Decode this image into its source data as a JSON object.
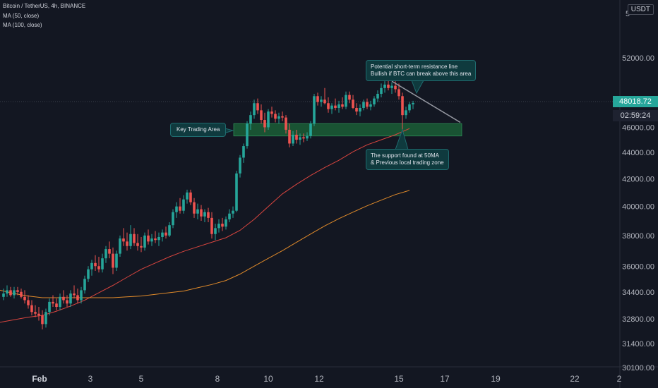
{
  "header": {
    "symbol": "Bitcoin / TetherUS, 4h, BINANCE",
    "ma50": "MA (50, close)",
    "ma100": "MA (100, close)"
  },
  "unit": "USDT",
  "price_axis_labels": [
    "52000.00",
    "46000.00",
    "44000.00",
    "42000.00",
    "40000.00",
    "38000.00",
    "36000.00",
    "34400.00",
    "32800.00",
    "31400.00",
    "30100.00"
  ],
  "time_axis_labels": [
    "Feb",
    "3",
    "5",
    "8",
    "10",
    "12",
    "15",
    "17",
    "19",
    "22",
    "2"
  ],
  "current_price": "48018.72",
  "countdown": "02:59:24",
  "annotations": {
    "resistance": [
      "Potential short-term resistance line",
      "Bullish if BTC can break above this area"
    ],
    "key_area": "Key Trading Area",
    "support": [
      "The support found at 50MA",
      "& Previous local trading zone"
    ]
  },
  "colors": {
    "up": "#26a69a",
    "down": "#ef5350",
    "ma50": "#d9453f",
    "ma100": "#e08a2a",
    "zone": "#1b5e36",
    "background": "#131722",
    "price_tag": "#26a69a"
  },
  "chart_data": {
    "type": "candlestick",
    "title": "Bitcoin / TetherUS, 4h, BINANCE",
    "y_scale": "log",
    "ylim": [
      30100,
      56000
    ],
    "x_ticks": [
      "Feb",
      "3",
      "5",
      "8",
      "10",
      "12",
      "15",
      "17",
      "19",
      "22",
      "2"
    ],
    "series": [
      {
        "name": "MA (50, close)",
        "points": [
          [
            0,
            32600
          ],
          [
            20,
            32750
          ],
          [
            40,
            32900
          ],
          [
            60,
            33000
          ],
          [
            80,
            33250
          ],
          [
            100,
            33550
          ],
          [
            120,
            33900
          ],
          [
            140,
            34350
          ],
          [
            160,
            34800
          ],
          [
            180,
            35300
          ],
          [
            200,
            35800
          ],
          [
            220,
            36200
          ],
          [
            240,
            36600
          ],
          [
            260,
            36950
          ],
          [
            280,
            37250
          ],
          [
            300,
            37550
          ],
          [
            320,
            37850
          ],
          [
            340,
            38350
          ],
          [
            360,
            39100
          ],
          [
            380,
            40000
          ],
          [
            400,
            40900
          ],
          [
            420,
            41600
          ],
          [
            440,
            42250
          ],
          [
            460,
            42850
          ],
          [
            480,
            43400
          ],
          [
            500,
            44050
          ],
          [
            520,
            44600
          ],
          [
            540,
            45000
          ],
          [
            560,
            45400
          ],
          [
            580,
            45900
          ]
        ]
      },
      {
        "name": "MA (100, close)",
        "points": [
          [
            0,
            34500
          ],
          [
            20,
            34300
          ],
          [
            40,
            34150
          ],
          [
            60,
            34050
          ],
          [
            80,
            34050
          ],
          [
            100,
            34050
          ],
          [
            120,
            34050
          ],
          [
            140,
            34050
          ],
          [
            160,
            34050
          ],
          [
            180,
            34100
          ],
          [
            200,
            34150
          ],
          [
            220,
            34250
          ],
          [
            240,
            34350
          ],
          [
            260,
            34450
          ],
          [
            280,
            34650
          ],
          [
            300,
            34850
          ],
          [
            320,
            35100
          ],
          [
            340,
            35500
          ],
          [
            360,
            36000
          ],
          [
            380,
            36500
          ],
          [
            400,
            37000
          ],
          [
            420,
            37550
          ],
          [
            440,
            38100
          ],
          [
            460,
            38650
          ],
          [
            480,
            39150
          ],
          [
            500,
            39600
          ],
          [
            520,
            40050
          ],
          [
            540,
            40450
          ],
          [
            560,
            40850
          ],
          [
            580,
            41150
          ]
        ]
      }
    ],
    "candles": [
      {
        "t": 5,
        "o": 34100,
        "h": 34600,
        "l": 33900,
        "c": 34300
      },
      {
        "t": 10,
        "o": 34300,
        "h": 34800,
        "l": 34100,
        "c": 34500
      },
      {
        "t": 15,
        "o": 34500,
        "h": 34700,
        "l": 34100,
        "c": 34200
      },
      {
        "t": 20,
        "o": 34200,
        "h": 34700,
        "l": 34000,
        "c": 34500
      },
      {
        "t": 25,
        "o": 34500,
        "h": 34700,
        "l": 34200,
        "c": 34400
      },
      {
        "t": 30,
        "o": 34400,
        "h": 34600,
        "l": 34000,
        "c": 34100
      },
      {
        "t": 35,
        "o": 34100,
        "h": 34500,
        "l": 33700,
        "c": 33900
      },
      {
        "t": 40,
        "o": 33900,
        "h": 34200,
        "l": 33400,
        "c": 33600
      },
      {
        "t": 45,
        "o": 33600,
        "h": 33900,
        "l": 33000,
        "c": 33200
      },
      {
        "t": 50,
        "o": 33200,
        "h": 33600,
        "l": 32900,
        "c": 33100
      },
      {
        "t": 55,
        "o": 33100,
        "h": 33500,
        "l": 32700,
        "c": 33000
      },
      {
        "t": 60,
        "o": 33000,
        "h": 33300,
        "l": 32200,
        "c": 32500
      },
      {
        "t": 65,
        "o": 32500,
        "h": 33400,
        "l": 32300,
        "c": 33200
      },
      {
        "t": 70,
        "o": 33200,
        "h": 34000,
        "l": 33000,
        "c": 33800
      },
      {
        "t": 75,
        "o": 33800,
        "h": 34200,
        "l": 33500,
        "c": 33700
      },
      {
        "t": 80,
        "o": 33700,
        "h": 34000,
        "l": 33300,
        "c": 33500
      },
      {
        "t": 85,
        "o": 33500,
        "h": 34300,
        "l": 33300,
        "c": 34100
      },
      {
        "t": 90,
        "o": 34100,
        "h": 34500,
        "l": 33700,
        "c": 33900
      },
      {
        "t": 95,
        "o": 33900,
        "h": 34200,
        "l": 33500,
        "c": 33700
      },
      {
        "t": 100,
        "o": 33700,
        "h": 34500,
        "l": 33500,
        "c": 34300
      },
      {
        "t": 105,
        "o": 34300,
        "h": 34800,
        "l": 34000,
        "c": 34200
      },
      {
        "t": 110,
        "o": 34200,
        "h": 34600,
        "l": 33700,
        "c": 33900
      },
      {
        "t": 115,
        "o": 33900,
        "h": 34700,
        "l": 33700,
        "c": 34500
      },
      {
        "t": 120,
        "o": 34500,
        "h": 35400,
        "l": 34300,
        "c": 35200
      },
      {
        "t": 125,
        "o": 35200,
        "h": 36000,
        "l": 35000,
        "c": 35800
      },
      {
        "t": 130,
        "o": 35800,
        "h": 36400,
        "l": 35400,
        "c": 36200
      },
      {
        "t": 135,
        "o": 36200,
        "h": 36700,
        "l": 35700,
        "c": 36000
      },
      {
        "t": 140,
        "o": 36000,
        "h": 36600,
        "l": 35600,
        "c": 35800
      },
      {
        "t": 145,
        "o": 35800,
        "h": 36800,
        "l": 35600,
        "c": 36500
      },
      {
        "t": 150,
        "o": 36500,
        "h": 37300,
        "l": 36200,
        "c": 37100
      },
      {
        "t": 155,
        "o": 37100,
        "h": 37600,
        "l": 36500,
        "c": 36800
      },
      {
        "t": 160,
        "o": 36800,
        "h": 37200,
        "l": 35500,
        "c": 35900
      },
      {
        "t": 165,
        "o": 35900,
        "h": 37000,
        "l": 35700,
        "c": 36800
      },
      {
        "t": 170,
        "o": 36800,
        "h": 38000,
        "l": 36600,
        "c": 37800
      },
      {
        "t": 175,
        "o": 37800,
        "h": 38500,
        "l": 37300,
        "c": 37600
      },
      {
        "t": 180,
        "o": 37600,
        "h": 38200,
        "l": 37000,
        "c": 37300
      },
      {
        "t": 185,
        "o": 37300,
        "h": 38700,
        "l": 37100,
        "c": 38100
      },
      {
        "t": 190,
        "o": 38100,
        "h": 38500,
        "l": 37300,
        "c": 37500
      },
      {
        "t": 195,
        "o": 37500,
        "h": 38100,
        "l": 37000,
        "c": 37300
      },
      {
        "t": 200,
        "o": 37300,
        "h": 37900,
        "l": 36900,
        "c": 37200
      },
      {
        "t": 205,
        "o": 37200,
        "h": 38200,
        "l": 37000,
        "c": 38000
      },
      {
        "t": 210,
        "o": 38000,
        "h": 38400,
        "l": 37400,
        "c": 37600
      },
      {
        "t": 215,
        "o": 37600,
        "h": 38100,
        "l": 37300,
        "c": 37800
      },
      {
        "t": 220,
        "o": 37800,
        "h": 38300,
        "l": 37500,
        "c": 37700
      },
      {
        "t": 225,
        "o": 37700,
        "h": 38200,
        "l": 37300,
        "c": 37900
      },
      {
        "t": 230,
        "o": 37900,
        "h": 38400,
        "l": 37600,
        "c": 38200
      },
      {
        "t": 235,
        "o": 38200,
        "h": 38600,
        "l": 37800,
        "c": 38000
      },
      {
        "t": 240,
        "o": 38000,
        "h": 38900,
        "l": 37900,
        "c": 38700
      },
      {
        "t": 245,
        "o": 38700,
        "h": 39800,
        "l": 38500,
        "c": 39600
      },
      {
        "t": 250,
        "o": 39600,
        "h": 40300,
        "l": 39200,
        "c": 40000
      },
      {
        "t": 255,
        "o": 40000,
        "h": 40600,
        "l": 39500,
        "c": 39700
      },
      {
        "t": 260,
        "o": 39700,
        "h": 40800,
        "l": 39500,
        "c": 40500
      },
      {
        "t": 265,
        "o": 40500,
        "h": 41200,
        "l": 40200,
        "c": 41000
      },
      {
        "t": 270,
        "o": 41000,
        "h": 41200,
        "l": 40100,
        "c": 40300
      },
      {
        "t": 275,
        "o": 40300,
        "h": 40600,
        "l": 39200,
        "c": 39500
      },
      {
        "t": 280,
        "o": 39500,
        "h": 40200,
        "l": 39100,
        "c": 39800
      },
      {
        "t": 285,
        "o": 39800,
        "h": 40100,
        "l": 39000,
        "c": 39300
      },
      {
        "t": 290,
        "o": 39300,
        "h": 39800,
        "l": 38900,
        "c": 39600
      },
      {
        "t": 295,
        "o": 39600,
        "h": 39900,
        "l": 38900,
        "c": 39200
      },
      {
        "t": 300,
        "o": 39200,
        "h": 39600,
        "l": 37800,
        "c": 38100
      },
      {
        "t": 305,
        "o": 38100,
        "h": 38800,
        "l": 37700,
        "c": 38500
      },
      {
        "t": 310,
        "o": 38500,
        "h": 39100,
        "l": 38200,
        "c": 38800
      },
      {
        "t": 315,
        "o": 38800,
        "h": 39200,
        "l": 38300,
        "c": 38600
      },
      {
        "t": 320,
        "o": 38600,
        "h": 39300,
        "l": 38400,
        "c": 39100
      },
      {
        "t": 325,
        "o": 39100,
        "h": 39800,
        "l": 38900,
        "c": 39500
      },
      {
        "t": 330,
        "o": 39500,
        "h": 40000,
        "l": 39200,
        "c": 39700
      },
      {
        "t": 335,
        "o": 39700,
        "h": 42600,
        "l": 39600,
        "c": 42400
      },
      {
        "t": 340,
        "o": 42400,
        "h": 43800,
        "l": 42100,
        "c": 43600
      },
      {
        "t": 345,
        "o": 43600,
        "h": 44700,
        "l": 43200,
        "c": 44500
      },
      {
        "t": 350,
        "o": 44500,
        "h": 46500,
        "l": 44300,
        "c": 46300
      },
      {
        "t": 355,
        "o": 46300,
        "h": 47300,
        "l": 45800,
        "c": 47000
      },
      {
        "t": 360,
        "o": 47000,
        "h": 48300,
        "l": 46700,
        "c": 48000
      },
      {
        "t": 365,
        "o": 48000,
        "h": 48400,
        "l": 47100,
        "c": 47400
      },
      {
        "t": 370,
        "o": 47400,
        "h": 47900,
        "l": 46300,
        "c": 46600
      },
      {
        "t": 375,
        "o": 46600,
        "h": 47200,
        "l": 45600,
        "c": 46000
      },
      {
        "t": 380,
        "o": 46000,
        "h": 47500,
        "l": 45800,
        "c": 47300
      },
      {
        "t": 385,
        "o": 47300,
        "h": 47700,
        "l": 46800,
        "c": 47100
      },
      {
        "t": 390,
        "o": 47100,
        "h": 47400,
        "l": 46400,
        "c": 46700
      },
      {
        "t": 395,
        "o": 46700,
        "h": 47200,
        "l": 46300,
        "c": 46900
      },
      {
        "t": 400,
        "o": 46900,
        "h": 47300,
        "l": 46500,
        "c": 46800
      },
      {
        "t": 405,
        "o": 46800,
        "h": 47000,
        "l": 45500,
        "c": 45800
      },
      {
        "t": 410,
        "o": 45800,
        "h": 46300,
        "l": 44400,
        "c": 44700
      },
      {
        "t": 415,
        "o": 44700,
        "h": 45700,
        "l": 44500,
        "c": 45400
      },
      {
        "t": 420,
        "o": 45400,
        "h": 45800,
        "l": 44700,
        "c": 45000
      },
      {
        "t": 425,
        "o": 45000,
        "h": 45500,
        "l": 44600,
        "c": 45200
      },
      {
        "t": 430,
        "o": 45200,
        "h": 45500,
        "l": 44800,
        "c": 45100
      },
      {
        "t": 435,
        "o": 45100,
        "h": 45600,
        "l": 44900,
        "c": 45300
      },
      {
        "t": 440,
        "o": 45300,
        "h": 46500,
        "l": 45100,
        "c": 46300
      },
      {
        "t": 445,
        "o": 46300,
        "h": 48800,
        "l": 46100,
        "c": 48600
      },
      {
        "t": 450,
        "o": 48600,
        "h": 48900,
        "l": 47800,
        "c": 48100
      },
      {
        "t": 455,
        "o": 48100,
        "h": 48600,
        "l": 47700,
        "c": 48300
      },
      {
        "t": 460,
        "o": 48300,
        "h": 49300,
        "l": 47900,
        "c": 48000
      },
      {
        "t": 465,
        "o": 48000,
        "h": 48500,
        "l": 47200,
        "c": 47500
      },
      {
        "t": 470,
        "o": 47500,
        "h": 48000,
        "l": 47100,
        "c": 47800
      },
      {
        "t": 475,
        "o": 47800,
        "h": 48400,
        "l": 47400,
        "c": 47600
      },
      {
        "t": 480,
        "o": 47600,
        "h": 48200,
        "l": 47200,
        "c": 47900
      },
      {
        "t": 485,
        "o": 47900,
        "h": 48500,
        "l": 47500,
        "c": 47700
      },
      {
        "t": 490,
        "o": 47700,
        "h": 49000,
        "l": 47500,
        "c": 48700
      },
      {
        "t": 495,
        "o": 48700,
        "h": 49000,
        "l": 48000,
        "c": 48300
      },
      {
        "t": 500,
        "o": 48300,
        "h": 48700,
        "l": 47500,
        "c": 47600
      },
      {
        "t": 505,
        "o": 47600,
        "h": 48000,
        "l": 47000,
        "c": 47300
      },
      {
        "t": 510,
        "o": 47300,
        "h": 47900,
        "l": 46900,
        "c": 47600
      },
      {
        "t": 515,
        "o": 47600,
        "h": 48300,
        "l": 47400,
        "c": 48100
      },
      {
        "t": 520,
        "o": 48100,
        "h": 48400,
        "l": 47500,
        "c": 47700
      },
      {
        "t": 525,
        "o": 47700,
        "h": 48200,
        "l": 47400,
        "c": 47900
      },
      {
        "t": 530,
        "o": 47900,
        "h": 48600,
        "l": 47700,
        "c": 48400
      },
      {
        "t": 535,
        "o": 48400,
        "h": 49100,
        "l": 48100,
        "c": 48800
      },
      {
        "t": 540,
        "o": 48800,
        "h": 49700,
        "l": 48500,
        "c": 49300
      },
      {
        "t": 545,
        "o": 49300,
        "h": 49900,
        "l": 48900,
        "c": 49600
      },
      {
        "t": 550,
        "o": 49600,
        "h": 50200,
        "l": 49100,
        "c": 49300
      },
      {
        "t": 555,
        "o": 49300,
        "h": 49800,
        "l": 48800,
        "c": 49500
      },
      {
        "t": 560,
        "o": 49500,
        "h": 49900,
        "l": 48900,
        "c": 49200
      },
      {
        "t": 565,
        "o": 49200,
        "h": 49700,
        "l": 48300,
        "c": 48600
      },
      {
        "t": 570,
        "o": 48600,
        "h": 48900,
        "l": 45600,
        "c": 47000
      },
      {
        "t": 575,
        "o": 47000,
        "h": 47700,
        "l": 46700,
        "c": 47400
      },
      {
        "t": 580,
        "o": 47400,
        "h": 48100,
        "l": 47200,
        "c": 47900
      },
      {
        "t": 585,
        "o": 47900,
        "h": 48200,
        "l": 47500,
        "c": 48018.72
      }
    ]
  }
}
